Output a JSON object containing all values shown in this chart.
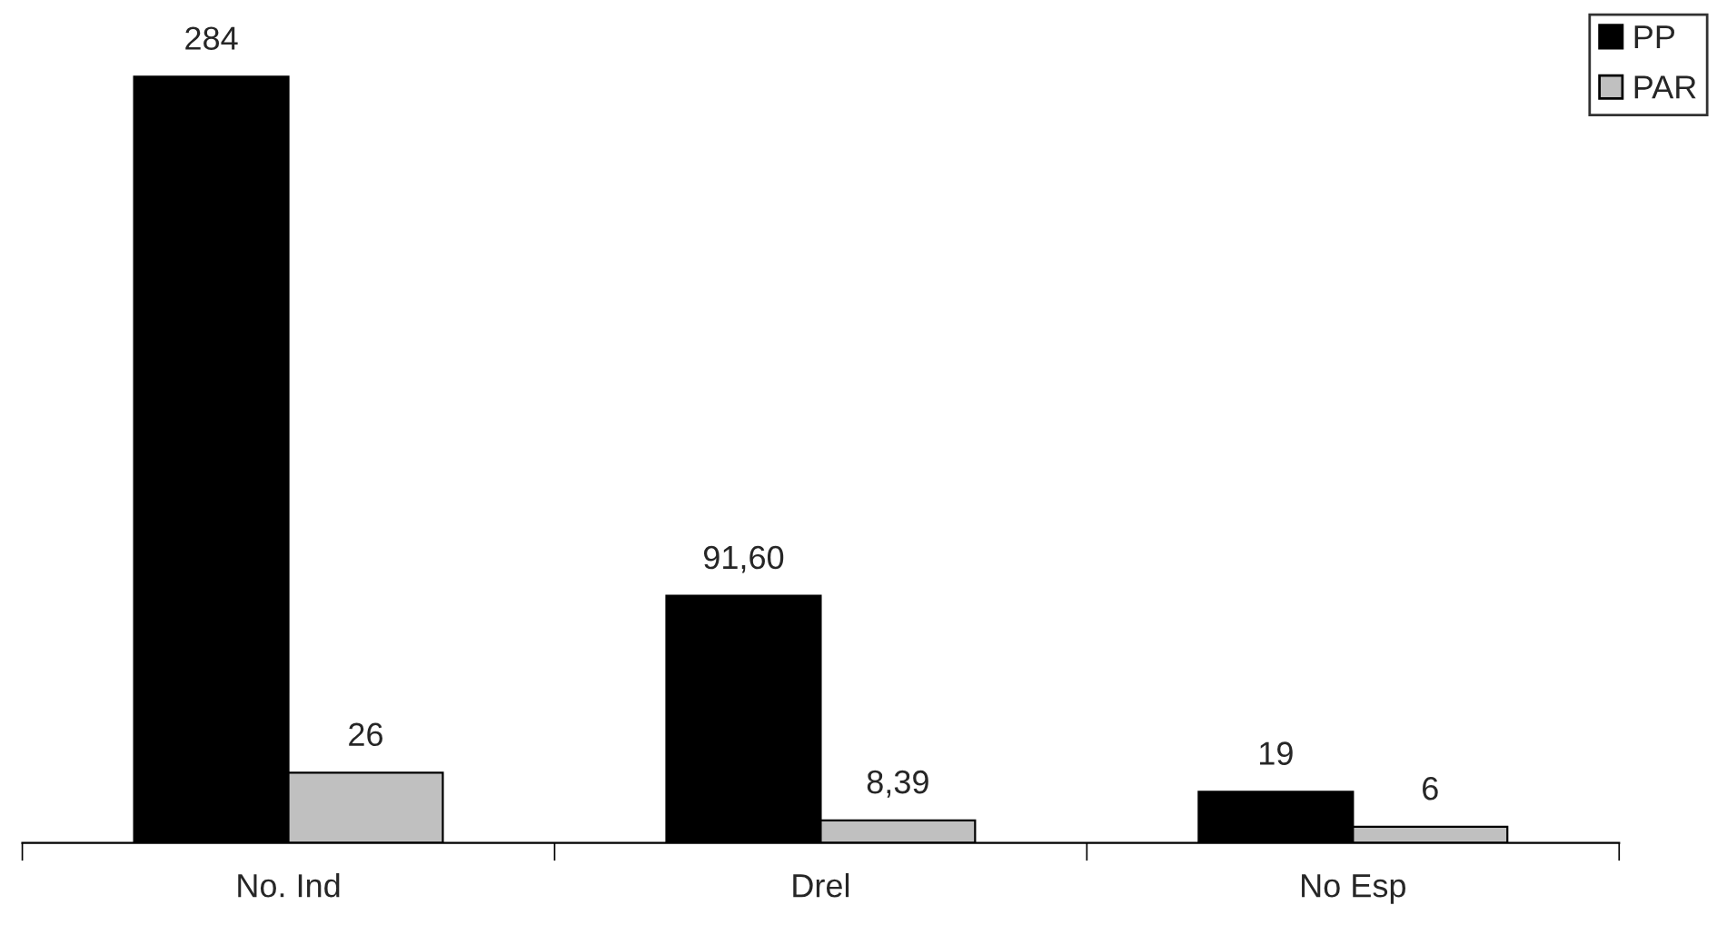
{
  "chart_data": {
    "type": "bar",
    "categories": [
      "No. Ind",
      "Drel",
      "No Esp"
    ],
    "series": [
      {
        "name": "PP",
        "color": "#000000",
        "values": [
          284,
          91.6,
          19
        ],
        "value_labels": [
          "284",
          "91,60",
          "19"
        ]
      },
      {
        "name": "PAR",
        "color": "#c0c0c0",
        "values": [
          26,
          8.39,
          6
        ],
        "value_labels": [
          "26",
          "8,39",
          "6"
        ]
      }
    ],
    "legend": "top right"
  }
}
